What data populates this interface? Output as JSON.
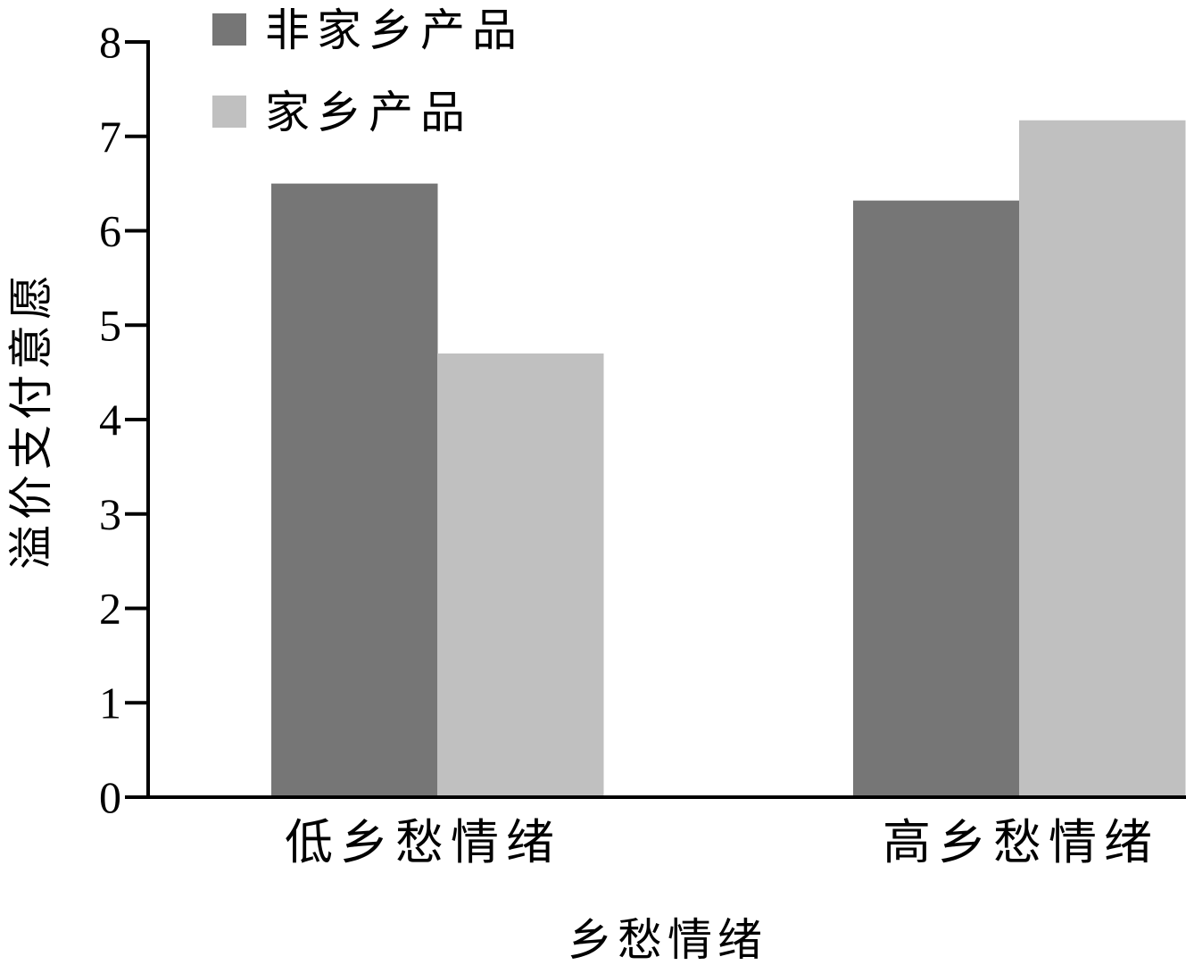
{
  "chart_data": {
    "type": "bar",
    "categories": [
      "低乡愁情绪",
      "高乡愁情绪"
    ],
    "series": [
      {
        "name": "非家乡产品",
        "values": [
          6.5,
          6.32
        ],
        "color": "#767676"
      },
      {
        "name": "家乡产品",
        "values": [
          4.7,
          7.17
        ],
        "color": "#c0c0c0"
      }
    ],
    "xlabel": "乡愁情绪",
    "ylabel": "溢价支付意愿",
    "ylim": [
      0,
      8
    ],
    "yticks": [
      0,
      1,
      2,
      3,
      4,
      5,
      6,
      7,
      8
    ],
    "grid": false,
    "legend_position": "top-left"
  }
}
